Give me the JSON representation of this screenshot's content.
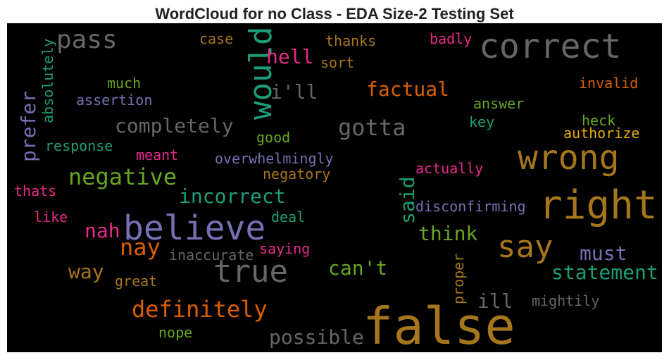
{
  "title": "WordCloud for no Class - EDA Size-2 Testing Set",
  "words": [
    {
      "text": "pass",
      "color": "#666666"
    },
    {
      "text": "correct",
      "color": "#666666"
    },
    {
      "text": "would",
      "color": "#1b9e77"
    },
    {
      "text": "hell",
      "color": "#e7298a"
    },
    {
      "text": "case",
      "color": "#a6761d"
    },
    {
      "text": "thanks",
      "color": "#a6761d"
    },
    {
      "text": "badly",
      "color": "#e7298a"
    },
    {
      "text": "sort",
      "color": "#a6761d"
    },
    {
      "text": "much",
      "color": "#66a61e"
    },
    {
      "text": "assertion",
      "color": "#7570b3"
    },
    {
      "text": "absolutely",
      "color": "#1b9e77"
    },
    {
      "text": "i'll",
      "color": "#666666"
    },
    {
      "text": "factual",
      "color": "#d95f02"
    },
    {
      "text": "invalid",
      "color": "#d95f02"
    },
    {
      "text": "answer",
      "color": "#66a61e"
    },
    {
      "text": "prefer",
      "color": "#7570b3"
    },
    {
      "text": "completely",
      "color": "#666666"
    },
    {
      "text": "gotta",
      "color": "#666666"
    },
    {
      "text": "heck",
      "color": "#66a61e"
    },
    {
      "text": "key",
      "color": "#1b9e77"
    },
    {
      "text": "authorize",
      "color": "#e6ab02"
    },
    {
      "text": "good",
      "color": "#66a61e"
    },
    {
      "text": "response",
      "color": "#1b9e77"
    },
    {
      "text": "wrong",
      "color": "#a6761d"
    },
    {
      "text": "meant",
      "color": "#e7298a"
    },
    {
      "text": "overwhelmingly",
      "color": "#7570b3"
    },
    {
      "text": "negative",
      "color": "#66a61e"
    },
    {
      "text": "negatory",
      "color": "#a6761d"
    },
    {
      "text": "actually",
      "color": "#e7298a"
    },
    {
      "text": "said",
      "color": "#1b9e77"
    },
    {
      "text": "thats",
      "color": "#e7298a"
    },
    {
      "text": "incorrect",
      "color": "#1b9e77"
    },
    {
      "text": "right",
      "color": "#a6761d"
    },
    {
      "text": "like",
      "color": "#e7298a"
    },
    {
      "text": "deal",
      "color": "#1b9e77"
    },
    {
      "text": "disconfirming",
      "color": "#7570b3"
    },
    {
      "text": "believe",
      "color": "#7570b3"
    },
    {
      "text": "nah",
      "color": "#e7298a"
    },
    {
      "text": "think",
      "color": "#66a61e"
    },
    {
      "text": "say",
      "color": "#a6761d"
    },
    {
      "text": "nay",
      "color": "#d95f02"
    },
    {
      "text": "inaccurate",
      "color": "#666666"
    },
    {
      "text": "saying",
      "color": "#e7298a"
    },
    {
      "text": "must",
      "color": "#7570b3"
    },
    {
      "text": "true",
      "color": "#666666"
    },
    {
      "text": "can't",
      "color": "#66a61e"
    },
    {
      "text": "way",
      "color": "#a6761d"
    },
    {
      "text": "statement",
      "color": "#1b9e77"
    },
    {
      "text": "great",
      "color": "#a6761d"
    },
    {
      "text": "proper",
      "color": "#a6761d"
    },
    {
      "text": "ill",
      "color": "#666666"
    },
    {
      "text": "mightily",
      "color": "#666666"
    },
    {
      "text": "definitely",
      "color": "#d95f02"
    },
    {
      "text": "false",
      "color": "#a6761d"
    },
    {
      "text": "nope",
      "color": "#66a61e"
    },
    {
      "text": "possible",
      "color": "#666666"
    }
  ]
}
